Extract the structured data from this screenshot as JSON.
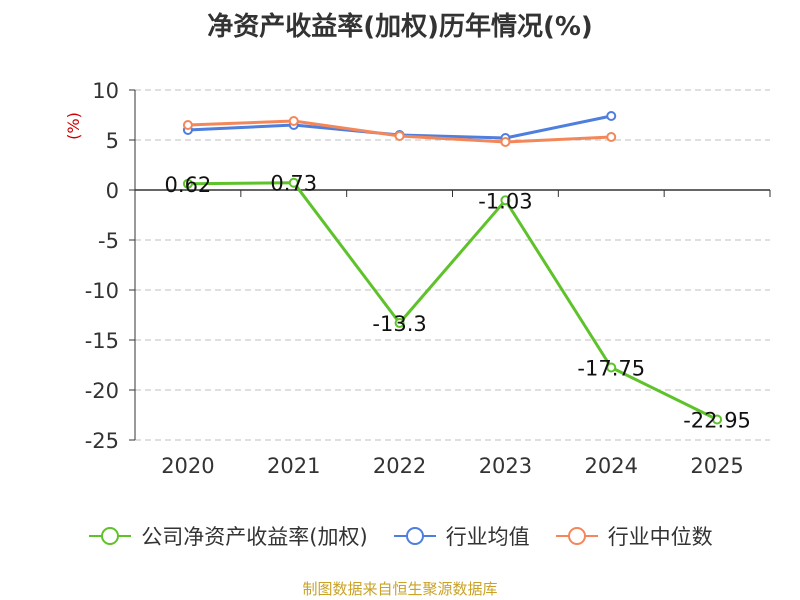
{
  "title": "净资产收益率(加权)历年情况(%)",
  "source": "制图数据来自恒生聚源数据库",
  "chart_data": {
    "type": "line",
    "title": "净资产收益率(加权)历年情况(%)",
    "ylabel": "(%)",
    "ylim": [
      -25,
      10
    ],
    "yticks": [
      10,
      5,
      0,
      -5,
      -10,
      -15,
      -20,
      -25
    ],
    "ytick_labels": [
      "10",
      "5",
      "0",
      "-5",
      "-10",
      "-15",
      "-20",
      "-25"
    ],
    "categories": [
      "2020",
      "2021",
      "2022",
      "2023",
      "2024",
      "2025"
    ],
    "grid": true,
    "legend_position": "bottom",
    "series": [
      {
        "name": "公司净资产收益率(加权)",
        "color": "#5ec22a",
        "values": [
          0.62,
          0.73,
          -13.3,
          -1.03,
          -17.75,
          -22.95
        ],
        "labels": [
          "0.62",
          "0.73",
          "-13.3",
          "-1.03",
          "-17.75",
          "-22.95"
        ]
      },
      {
        "name": "行业均值",
        "color": "#4e7ede",
        "values": [
          6.0,
          6.5,
          5.5,
          5.2,
          7.4,
          null
        ]
      },
      {
        "name": "行业中位数",
        "color": "#f4875a",
        "values": [
          6.5,
          6.9,
          5.4,
          4.8,
          5.3,
          null
        ]
      }
    ]
  }
}
